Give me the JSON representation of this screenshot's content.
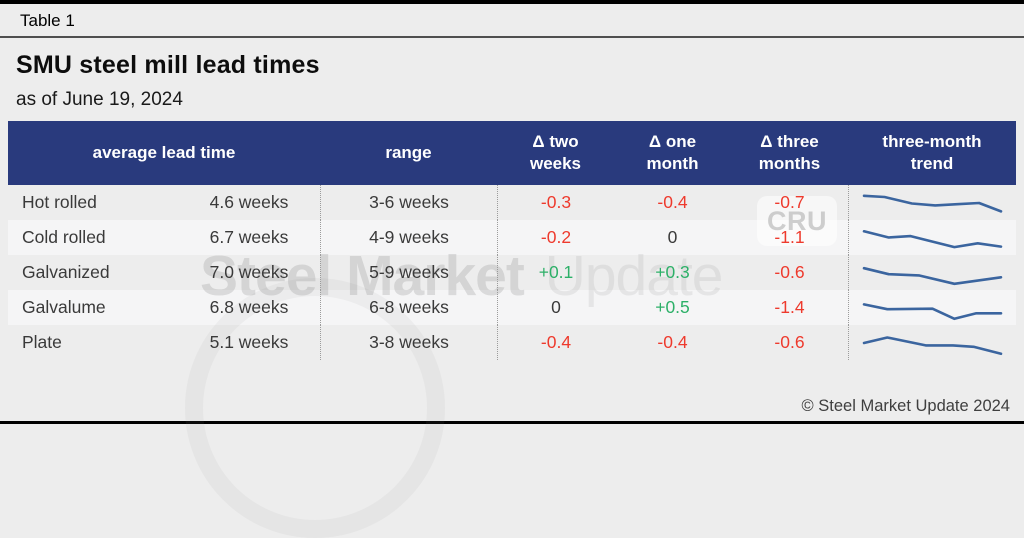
{
  "theme": {
    "page_bg": "#ededed",
    "alt_row_bg": "#f5f5f6",
    "header_bg": "#293a7d",
    "negative": "#ee3a2d",
    "positive": "#2db068",
    "neutral_text": "#3a3a3a",
    "sparkline": "#3b659f",
    "separator": "#9b9b9b"
  },
  "page": {
    "table_label": "Table 1",
    "title": "SMU steel mill lead times",
    "subtitle": "as of June 19, 2024",
    "footer": "© Steel Market Update 2024",
    "watermark_bold": "Steel Market",
    "watermark_light": "Update",
    "watermark_logo": "CRU"
  },
  "table": {
    "headers": {
      "average_lead_time": "average lead time",
      "range": "range",
      "delta_two_weeks": "Δ two\nweeks",
      "delta_one_month": "Δ one\nmonth",
      "delta_three_months": "Δ three\nmonths",
      "three_month_trend": "three-month\ntrend"
    },
    "rows": [
      {
        "product": "Hot rolled",
        "average": "4.6 weeks",
        "range": "3-6 weeks",
        "delta_two_weeks": "-0.3",
        "delta_one_month": "-0.4",
        "delta_three_months": "-0.7",
        "trend": [
          [
            0,
            0.2
          ],
          [
            0.15,
            0.25
          ],
          [
            0.35,
            0.52
          ],
          [
            0.52,
            0.6
          ],
          [
            0.68,
            0.55
          ],
          [
            0.84,
            0.5
          ],
          [
            1,
            0.85
          ]
        ]
      },
      {
        "product": "Cold rolled",
        "average": "6.7 weeks",
        "range": "4-9 weeks",
        "delta_two_weeks": "-0.2",
        "delta_one_month": "0",
        "delta_three_months": "-1.1",
        "trend": [
          [
            0,
            0.22
          ],
          [
            0.18,
            0.48
          ],
          [
            0.34,
            0.42
          ],
          [
            0.66,
            0.88
          ],
          [
            0.83,
            0.72
          ],
          [
            1,
            0.86
          ]
        ]
      },
      {
        "product": "Galvanized",
        "average": "7.0 weeks",
        "range": "5-9 weeks",
        "delta_two_weeks": "+0.1",
        "delta_one_month": "+0.3",
        "delta_three_months": "-0.6",
        "trend": [
          [
            0,
            0.3
          ],
          [
            0.18,
            0.55
          ],
          [
            0.4,
            0.6
          ],
          [
            0.66,
            0.95
          ],
          [
            1,
            0.68
          ]
        ]
      },
      {
        "product": "Galvalume",
        "average": "6.8 weeks",
        "range": "6-8 weeks",
        "delta_two_weeks": "0",
        "delta_one_month": "+0.5",
        "delta_three_months": "-1.4",
        "trend": [
          [
            0,
            0.35
          ],
          [
            0.17,
            0.55
          ],
          [
            0.5,
            0.53
          ],
          [
            0.66,
            0.95
          ],
          [
            0.82,
            0.72
          ],
          [
            1,
            0.72
          ]
        ]
      },
      {
        "product": "Plate",
        "average": "5.1 weeks",
        "range": "3-8 weeks",
        "delta_two_weeks": "-0.4",
        "delta_one_month": "-0.4",
        "delta_three_months": "-0.6",
        "trend": [
          [
            0,
            0.5
          ],
          [
            0.17,
            0.27
          ],
          [
            0.45,
            0.6
          ],
          [
            0.65,
            0.6
          ],
          [
            0.8,
            0.66
          ],
          [
            1,
            0.95
          ]
        ]
      }
    ]
  }
}
